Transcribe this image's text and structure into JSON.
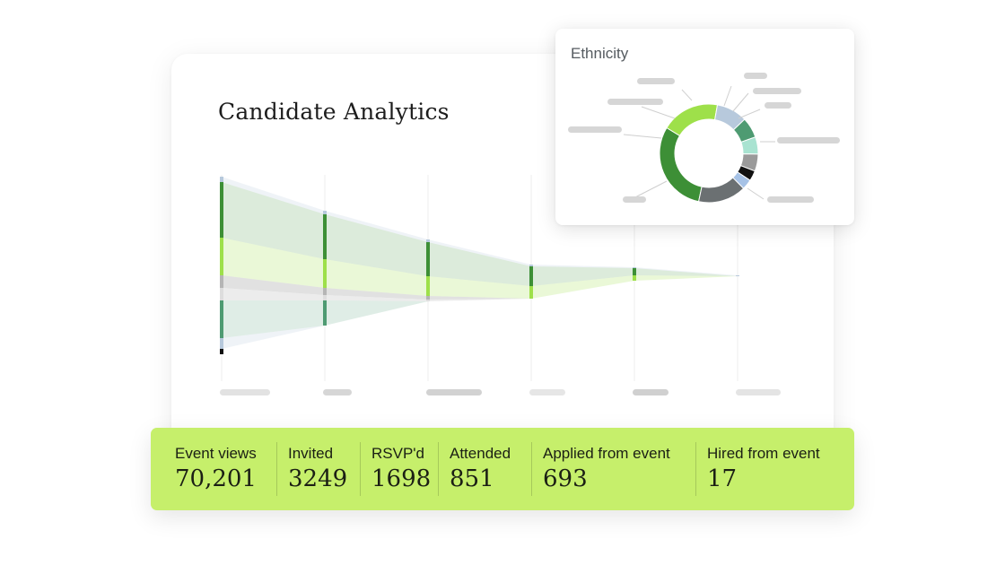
{
  "title": "Candidate Analytics",
  "ethnicity_card": {
    "title": "Ethnicity"
  },
  "stats": [
    {
      "label": "Event views",
      "value": "70,201"
    },
    {
      "label": "Invited",
      "value": "3249"
    },
    {
      "label": "RSVP'd",
      "value": "1698"
    },
    {
      "label": "Attended",
      "value": "851"
    },
    {
      "label": "Applied from event",
      "value": "693"
    },
    {
      "label": "Hired from event",
      "value": "17"
    }
  ],
  "colors": {
    "accent": "#c6ef6b",
    "dark_green": "#3d8f36",
    "lime": "#9ee04a",
    "teal_green": "#4e9b72",
    "light_blue": "#b7c9dc",
    "gray": "#6b7072",
    "light_gray": "#cfcfcf",
    "mint": "#a9e3d1"
  },
  "chart_data": [
    {
      "type": "area",
      "description_note": "",
      "stages": 6,
      "series": [
        {
          "color": "#b7c9dc",
          "values": [
            6,
            4,
            3,
            2,
            1,
            1
          ]
        },
        {
          "color": "#3d8f36",
          "values": [
            62,
            50,
            38,
            22,
            8,
            0
          ]
        },
        {
          "color": "#9ee04a",
          "values": [
            42,
            32,
            22,
            14,
            6,
            0
          ]
        },
        {
          "color": "#b5b5b5",
          "values": [
            14,
            8,
            4,
            0,
            0,
            0
          ]
        },
        {
          "color": "#dddddd",
          "values": [
            14,
            6,
            2,
            0,
            0,
            0
          ]
        },
        {
          "color": "#4e9b72",
          "values": [
            42,
            28,
            0,
            0,
            0,
            0
          ]
        },
        {
          "color": "#b7c9dc",
          "values": [
            12,
            0,
            0,
            0,
            0,
            0
          ]
        },
        {
          "color": "#111111",
          "values": [
            6,
            0,
            0,
            0,
            0,
            0
          ]
        }
      ]
    },
    {
      "type": "pie",
      "donut": true,
      "slices": [
        {
          "color": "#3d8f36",
          "value": 27
        },
        {
          "color": "#9ee04a",
          "value": 17
        },
        {
          "color": "#b7c9dc",
          "value": 9
        },
        {
          "color": "#4e9b72",
          "value": 6
        },
        {
          "color": "#a9e3d1",
          "value": 5
        },
        {
          "color": "#9a9a9a",
          "value": 5
        },
        {
          "color": "#111111",
          "value": 3
        },
        {
          "color": "#a6c2e6",
          "value": 3
        },
        {
          "color": "#6b7072",
          "value": 14
        }
      ]
    }
  ]
}
